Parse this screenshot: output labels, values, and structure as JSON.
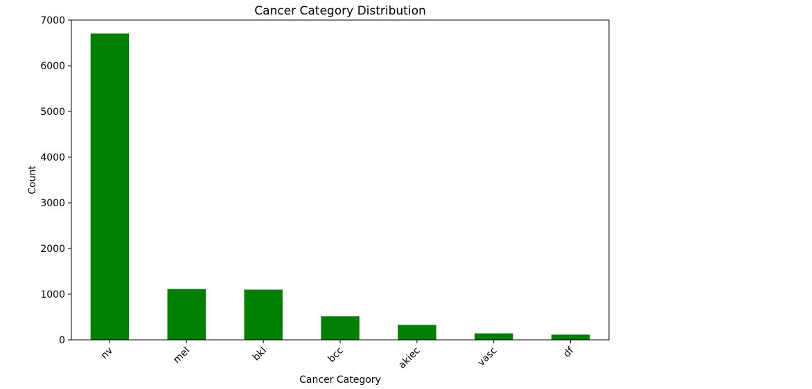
{
  "chart_data": {
    "type": "bar",
    "title": "Cancer Category Distribution",
    "xlabel": "Cancer Category",
    "ylabel": "Count",
    "categories": [
      "nv",
      "mel",
      "bkl",
      "bcc",
      "akiec",
      "vasc",
      "df"
    ],
    "values": [
      6705,
      1113,
      1099,
      514,
      327,
      142,
      115
    ],
    "ylim": [
      0,
      7000
    ],
    "yticks": [
      "0",
      "1000",
      "2000",
      "3000",
      "4000",
      "5000",
      "6000",
      "7000"
    ],
    "bar_color": "#008000",
    "grid": false,
    "legend": false
  }
}
